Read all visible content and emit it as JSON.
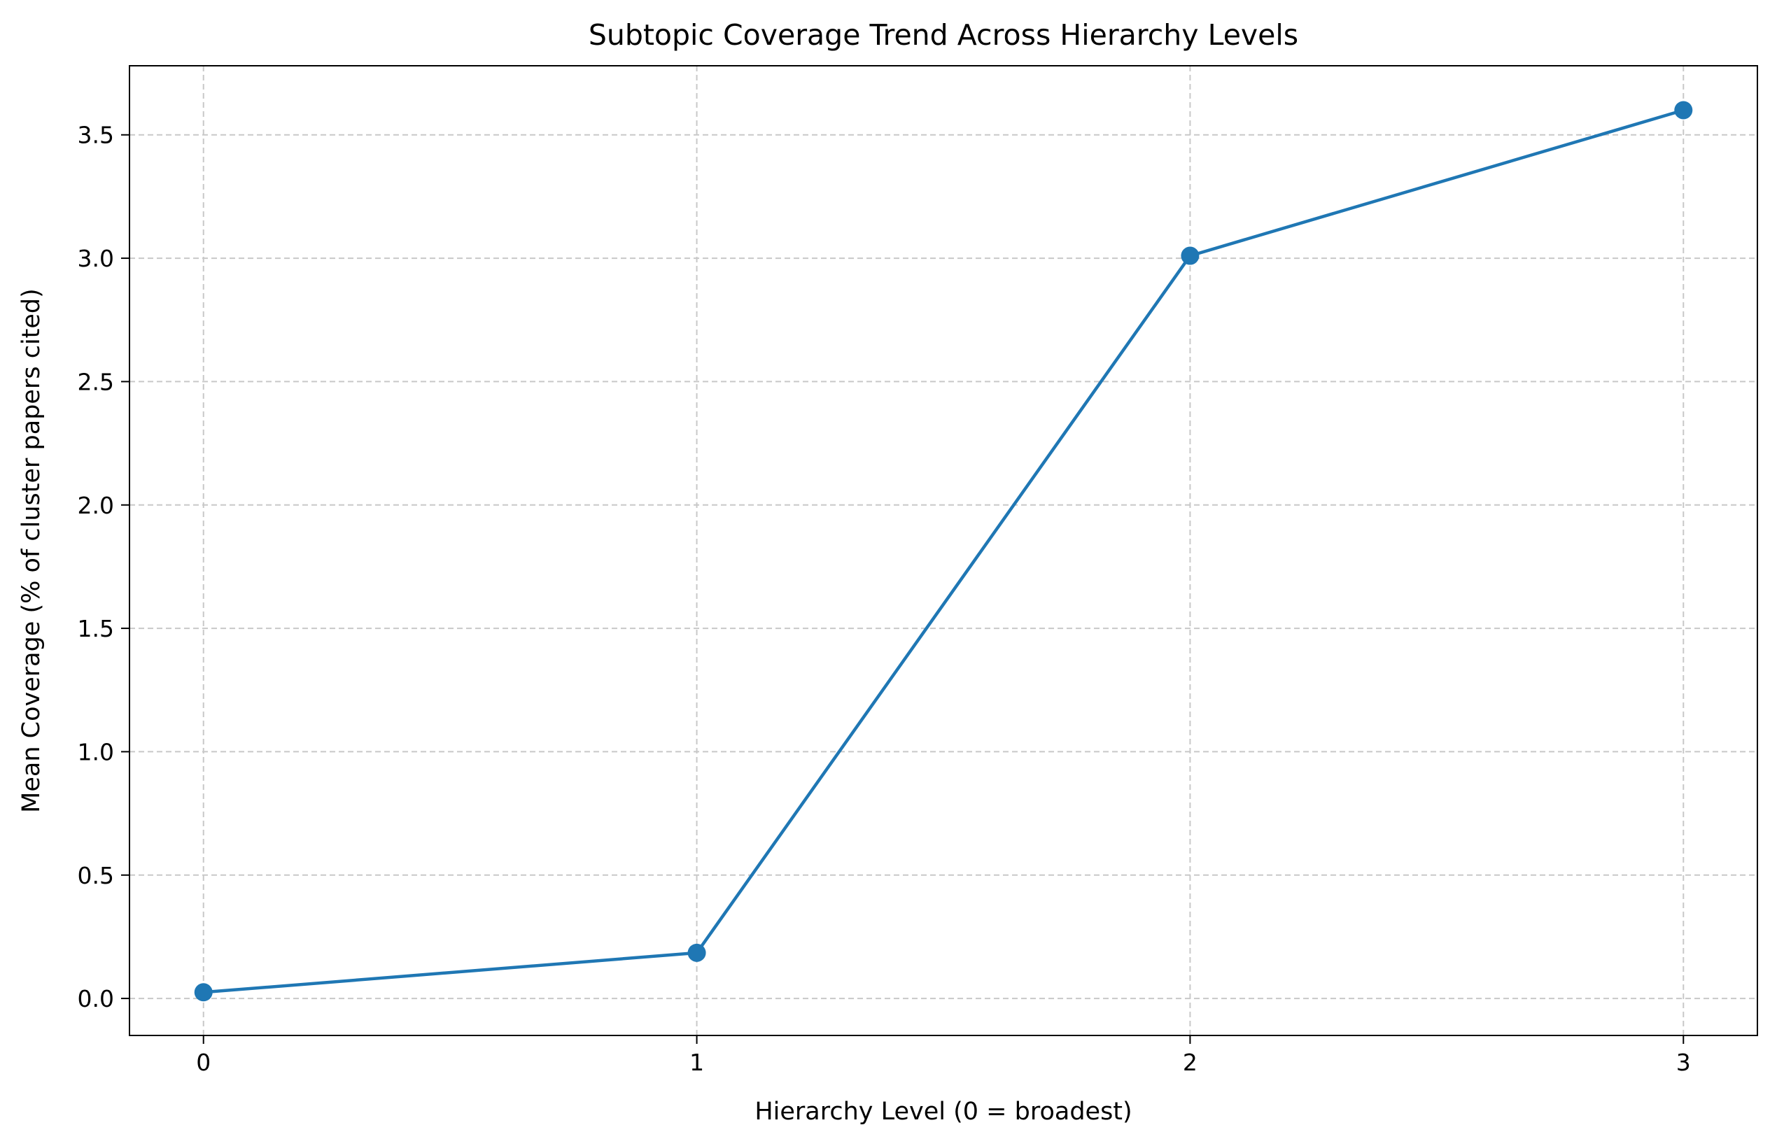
{
  "chart_data": {
    "type": "line",
    "title": "Subtopic Coverage Trend Across Hierarchy Levels",
    "xlabel": "Hierarchy Level (0 = broadest)",
    "ylabel": "Mean Coverage (% of cluster papers cited)",
    "x": [
      0,
      1,
      2,
      3
    ],
    "x_ticks": [
      "0",
      "1",
      "2",
      "3"
    ],
    "y_ticks": [
      "0.0",
      "0.5",
      "1.0",
      "1.5",
      "2.0",
      "2.5",
      "3.0",
      "3.5"
    ],
    "xlim": [
      -0.15,
      3.15
    ],
    "ylim": [
      -0.15,
      3.78
    ],
    "grid": true,
    "grid_style": "dashed",
    "series": [
      {
        "values": [
          0.025,
          0.185,
          3.01,
          3.6
        ],
        "color": "#1f77b4",
        "marker": "circle"
      }
    ]
  }
}
